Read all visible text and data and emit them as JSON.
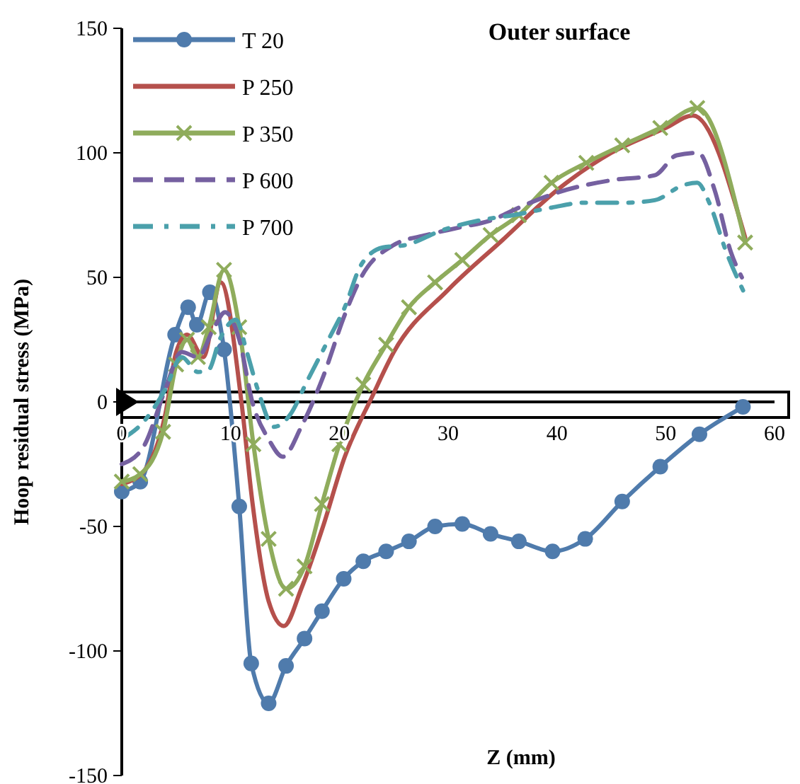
{
  "chart_data": {
    "type": "line",
    "title": "Outer surface",
    "xlabel": "Z (mm)",
    "ylabel": "Hoop residual stress (MPa)",
    "xlim": [
      0,
      60
    ],
    "xticks": [
      0,
      10,
      20,
      30,
      40,
      50,
      60
    ],
    "ylim": [
      -150,
      150
    ],
    "yticks": [
      -150,
      -100,
      -50,
      0,
      50,
      100,
      150
    ],
    "grid": false,
    "legend": "top left",
    "series": [
      {
        "name": "T 20",
        "color": "#4f7bac",
        "marker": "circle",
        "line_style": "solid",
        "x": [
          0,
          1.7,
          4.9,
          6.1,
          6.9,
          8.1,
          9.4,
          10.8,
          11.9,
          13.5,
          15.1,
          16.8,
          18.4,
          20.4,
          22.2,
          24.3,
          26.4,
          28.8,
          31.3,
          33.9,
          36.5,
          39.6,
          42.6,
          46,
          49.5,
          53.1,
          57.1
        ],
        "values": [
          -36,
          -32,
          27,
          38,
          31,
          44,
          21,
          -42,
          -105,
          -121,
          -106,
          -95,
          -84,
          -71,
          -64,
          -60,
          -56,
          -50,
          -49,
          -53,
          -56,
          -60,
          -55,
          -40,
          -26,
          -13,
          -2
        ]
      },
      {
        "name": "P 250",
        "color": "#b5504c",
        "marker": "none",
        "line_style": "solid",
        "x": [
          0,
          2,
          4,
          5,
          6,
          7.5,
          9.1,
          11,
          12,
          13.5,
          14.9,
          16.5,
          18.5,
          20.5,
          23,
          25,
          30,
          35,
          40,
          45,
          50,
          52.5,
          57.3
        ],
        "values": [
          -33,
          -28,
          -5,
          20,
          27,
          18,
          48,
          0,
          -40,
          -80,
          -90,
          -75,
          -50,
          -22,
          2,
          20,
          45,
          65,
          85,
          100,
          110,
          115,
          66
        ]
      },
      {
        "name": "P 350",
        "color": "#8fac5c",
        "marker": "cross",
        "line_style": "solid",
        "x": [
          0,
          1.7,
          3.8,
          5,
          6,
          7,
          8,
          9.4,
          10.8,
          12.1,
          13.5,
          15.1,
          16.8,
          18.4,
          20,
          22.2,
          24.3,
          26.4,
          28.8,
          31.3,
          33.9,
          36.5,
          39.5,
          42.7,
          46,
          49.5,
          52.9,
          57.3
        ],
        "values": [
          -32,
          -29,
          -12,
          15,
          25,
          18,
          30,
          53,
          30,
          -17,
          -55,
          -75,
          -66,
          -41,
          -17,
          7,
          23,
          38,
          48,
          57,
          67,
          75,
          88,
          96,
          103,
          110,
          118,
          64
        ]
      },
      {
        "name": "P 600",
        "color": "#7560a0",
        "marker": "none",
        "line_style": "dashed",
        "x": [
          0,
          2,
          4,
          5.5,
          7,
          8.5,
          9.5,
          10.8,
          12,
          13.5,
          14.8,
          16.5,
          18.5,
          20.5,
          22,
          25,
          28,
          31,
          34,
          36.5,
          40,
          45,
          49,
          51,
          53,
          54.5,
          56,
          57
        ],
        "values": [
          -25,
          -18,
          5,
          20,
          18,
          30,
          36,
          25,
          0,
          -15,
          -22,
          -10,
          10,
          35,
          50,
          63,
          67,
          70,
          73,
          78,
          84,
          89,
          91,
          99,
          100,
          85,
          60,
          50
        ]
      },
      {
        "name": "P 700",
        "color": "#4ba0ab",
        "marker": "none",
        "line_style": "dashdot",
        "x": [
          0,
          2,
          4,
          5.5,
          7,
          8,
          9,
          10.5,
          11.5,
          12.5,
          14,
          15.5,
          17,
          19,
          20.5,
          22,
          24,
          26.1,
          29.5,
          33,
          36,
          39.5,
          42.5,
          46.4,
          49,
          51.6,
          52.9,
          54,
          55.5,
          57.3
        ],
        "values": [
          -15,
          -8,
          5,
          18,
          12,
          13,
          25,
          33,
          20,
          5,
          -10,
          -5,
          8,
          25,
          38,
          55,
          62,
          63,
          69,
          73,
          75,
          78,
          80,
          80,
          81,
          87,
          88,
          80,
          61,
          43
        ]
      }
    ]
  }
}
